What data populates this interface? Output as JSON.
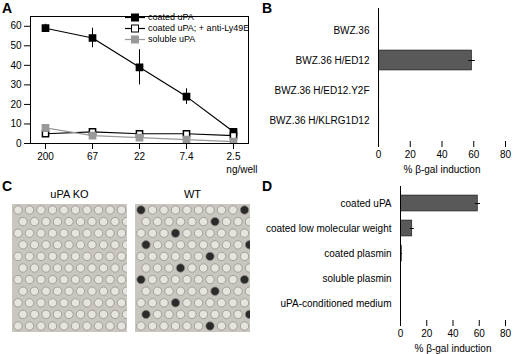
{
  "chart_data": [
    {
      "type": "line",
      "title": "A",
      "categories": [
        "200",
        "67",
        "22",
        "7.4",
        "2.5"
      ],
      "x_label": "ng/well",
      "ylim": [
        0,
        65
      ],
      "yticks": [
        0,
        10,
        20,
        30,
        40,
        50,
        60
      ],
      "legend": "top-right",
      "series": [
        {
          "name": "coated uPA",
          "color": "#000000",
          "marker": "square",
          "line_style": "solid",
          "values": [
            59,
            54,
            39,
            24,
            6
          ],
          "errors": [
            2,
            5,
            9,
            4,
            1
          ]
        },
        {
          "name": "coated uPA; + anti-Ly49E",
          "color": "#000000",
          "marker": "open_square",
          "line_style": "solid",
          "values": [
            5,
            6,
            5,
            5,
            4
          ]
        },
        {
          "name": "soluble uPA",
          "color": "#999999",
          "marker": "square",
          "line_style": "solid",
          "values": [
            8,
            4,
            3,
            2,
            1
          ]
        }
      ]
    },
    {
      "type": "bar",
      "title": "B",
      "orientation": "horizontal",
      "categories": [
        "BWZ.36",
        "BWZ.36 H/ED12",
        "BWZ.36 H/ED12.Y2F",
        "BWZ.36 H/KLRG1D12"
      ],
      "values": [
        0.5,
        59,
        0.5,
        0.5
      ],
      "errors": [
        0,
        2,
        0,
        0
      ],
      "color": "#595959",
      "xlim": [
        0,
        80
      ],
      "xticks": [
        0,
        20,
        40,
        60,
        80
      ],
      "x_label": "% β-gal induction"
    },
    {
      "type": "image",
      "title": "C",
      "labels": [
        "uPA KO",
        "WT"
      ]
    },
    {
      "type": "bar",
      "title": "D",
      "orientation": "horizontal",
      "categories": [
        "coated uPA",
        "coated low molecular weight",
        "coated plasmin",
        "soluble plasmin",
        "uPA-conditioned medium"
      ],
      "values": [
        59,
        9,
        1,
        0.3,
        0.3
      ],
      "errors": [
        2,
        1.5,
        0.5,
        0,
        0
      ],
      "color": "#595959",
      "xlim": [
        0,
        80
      ],
      "xticks": [
        0,
        20,
        40,
        60,
        80
      ],
      "x_label": "% β-gal induction"
    }
  ]
}
